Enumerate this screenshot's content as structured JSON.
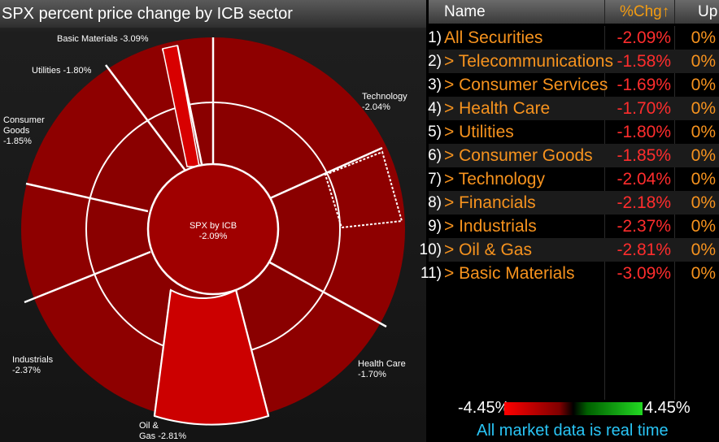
{
  "title": "SPX percent price change by ICB sector",
  "center": {
    "name": "SPX by ICB",
    "value": "-2.09%"
  },
  "sector_labels": {
    "basic_materials": "Basic Materials -3.09%",
    "utilities": "Utilities -1.80%",
    "consumer_goods_1": "Consumer",
    "consumer_goods_2": "Goods",
    "consumer_goods_3": "-1.85%",
    "technology_1": "Technology",
    "technology_2": "-2.04%",
    "health_care_1": "Health Care",
    "health_care_2": "-1.70%",
    "industrials_1": "Industrials",
    "industrials_2": "-2.37%",
    "oil_gas_1": "Oil &",
    "oil_gas_2": "Gas -2.81%"
  },
  "table": {
    "headers": {
      "name": "Name",
      "chg": "%Chg↑",
      "up": "Up"
    },
    "rows": [
      {
        "num": "1)",
        "name": "All Securities",
        "chg": "-2.09%",
        "up": "0%"
      },
      {
        "num": "2)",
        "name": "> Telecommunications",
        "chg": "-1.58%",
        "up": "0%"
      },
      {
        "num": "3)",
        "name": "> Consumer Services",
        "chg": "-1.69%",
        "up": "0%"
      },
      {
        "num": "4)",
        "name": "> Health Care",
        "chg": "-1.70%",
        "up": "0%"
      },
      {
        "num": "5)",
        "name": "> Utilities",
        "chg": "-1.80%",
        "up": "0%"
      },
      {
        "num": "6)",
        "name": "> Consumer Goods",
        "chg": "-1.85%",
        "up": "0%"
      },
      {
        "num": "7)",
        "name": "> Technology",
        "chg": "-2.04%",
        "up": "0%"
      },
      {
        "num": "8)",
        "name": "> Financials",
        "chg": "-2.18%",
        "up": "0%"
      },
      {
        "num": "9)",
        "name": "> Industrials",
        "chg": "-2.37%",
        "up": "0%"
      },
      {
        "num": "10)",
        "name": "> Oil & Gas",
        "chg": "-2.81%",
        "up": "0%"
      },
      {
        "num": "11)",
        "name": "> Basic Materials",
        "chg": "-3.09%",
        "up": "0%"
      }
    ]
  },
  "legend": {
    "min": "-4.45%",
    "max": "4.45%"
  },
  "footer": "All market data is real time",
  "colors": {
    "negative": "#ff2d2d",
    "accent": "#f7931e",
    "info": "#29c5f6",
    "segment": "#a00000"
  }
}
